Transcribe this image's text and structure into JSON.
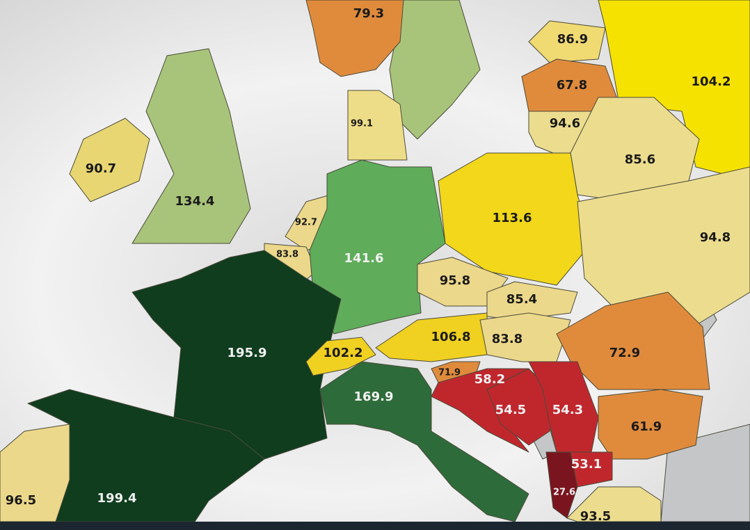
{
  "regions": [
    {
      "value": 79.3,
      "color": "#e08b3c"
    },
    {
      "value": 86.9,
      "color": "#f0da72"
    },
    {
      "value": 104.2,
      "color": "#f6e200"
    },
    {
      "value": 67.8,
      "color": "#e08b3c"
    },
    {
      "value": 94.6,
      "color": "#ecdc8e"
    },
    {
      "value": 99.1,
      "color": "#eedd88"
    },
    {
      "value": 90.7,
      "color": "#e8d672"
    },
    {
      "value": 85.6,
      "color": "#ecdc8e"
    },
    {
      "value": 134.4,
      "color": "#a8c47a"
    },
    {
      "value": 113.6,
      "color": "#f2d71a"
    },
    {
      "value": 92.7,
      "color": "#ecd88a"
    },
    {
      "value": 94.8,
      "color": "#ecdc8e"
    },
    {
      "value": 83.8,
      "color": "#ecd88a"
    },
    {
      "value": 141.6,
      "color": "#5fad5a"
    },
    {
      "value": 95.8,
      "color": "#ecd88a"
    },
    {
      "value": 85.4,
      "color": "#ecd88a"
    },
    {
      "value": 195.9,
      "color": "#0f3d1e"
    },
    {
      "value": 102.2,
      "color": "#f0d020"
    },
    {
      "value": 106.8,
      "color": "#f0d020"
    },
    {
      "value": 83.8,
      "color": "#ecd88a"
    },
    {
      "value": 72.9,
      "color": "#e08b3c"
    },
    {
      "value": 71.9,
      "color": "#e08b3c"
    },
    {
      "value": 58.2,
      "color": "#c0272d"
    },
    {
      "value": 169.9,
      "color": "#2e6b3a"
    },
    {
      "value": 54.5,
      "color": "#c0272d"
    },
    {
      "value": 54.3,
      "color": "#c0272d"
    },
    {
      "value": 61.9,
      "color": "#e08b3c"
    },
    {
      "value": 53.1,
      "color": "#c0272d"
    },
    {
      "value": 27.6,
      "color": "#7a1520"
    },
    {
      "value": 96.5,
      "color": "#ecd88a"
    },
    {
      "value": 199.4,
      "color": "#0f3d1e"
    },
    {
      "value": 93.5,
      "color": "#ecdc8e"
    }
  ]
}
